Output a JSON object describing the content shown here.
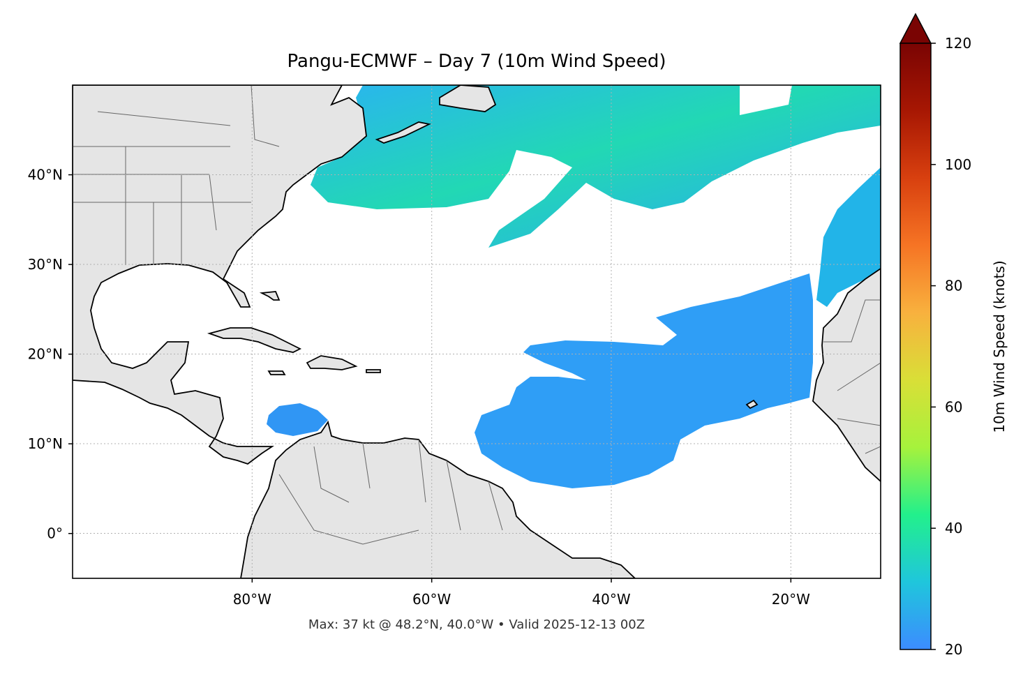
{
  "title": "Pangu-ECMWF – Day 7 (10m Wind Speed)",
  "footer": "Max: 37 kt @ 48.2°N, 40.0°W • Valid 2025-12-13 00Z",
  "map": {
    "lon_range": [
      -100,
      -10
    ],
    "lat_range": [
      -5,
      50
    ],
    "lon_ticks": [
      {
        "value": -80,
        "label": "80°W"
      },
      {
        "value": -60,
        "label": "60°W"
      },
      {
        "value": -40,
        "label": "40°W"
      },
      {
        "value": -20,
        "label": "20°W"
      }
    ],
    "lat_ticks": [
      {
        "value": 40,
        "label": "40°N"
      },
      {
        "value": 30,
        "label": "30°N"
      },
      {
        "value": 20,
        "label": "20°N"
      },
      {
        "value": 10,
        "label": "10°N"
      },
      {
        "value": 0,
        "label": "0°"
      }
    ],
    "land_color": "#e5e5e5",
    "ocean_color": "#ffffff",
    "gridlines": true
  },
  "colorbar": {
    "label": "10m Wind Speed (knots)",
    "min": 20,
    "max": 120,
    "extend": "max",
    "ticks": [
      {
        "value": 20,
        "label": "20"
      },
      {
        "value": 40,
        "label": "40"
      },
      {
        "value": 60,
        "label": "60"
      },
      {
        "value": 80,
        "label": "80"
      },
      {
        "value": 100,
        "label": "100"
      },
      {
        "value": 120,
        "label": "120"
      }
    ],
    "colormap": [
      "#3c8cff",
      "#1fc6dc",
      "#22f08c",
      "#a6f23c",
      "#d9df37",
      "#f8b13e",
      "#f67424",
      "#d8400f",
      "#a71703",
      "#7a0403"
    ],
    "extend_color": "#7a0403"
  },
  "max_point": {
    "speed_kt": 37,
    "lat": 48.2,
    "lon": -40.0
  }
}
